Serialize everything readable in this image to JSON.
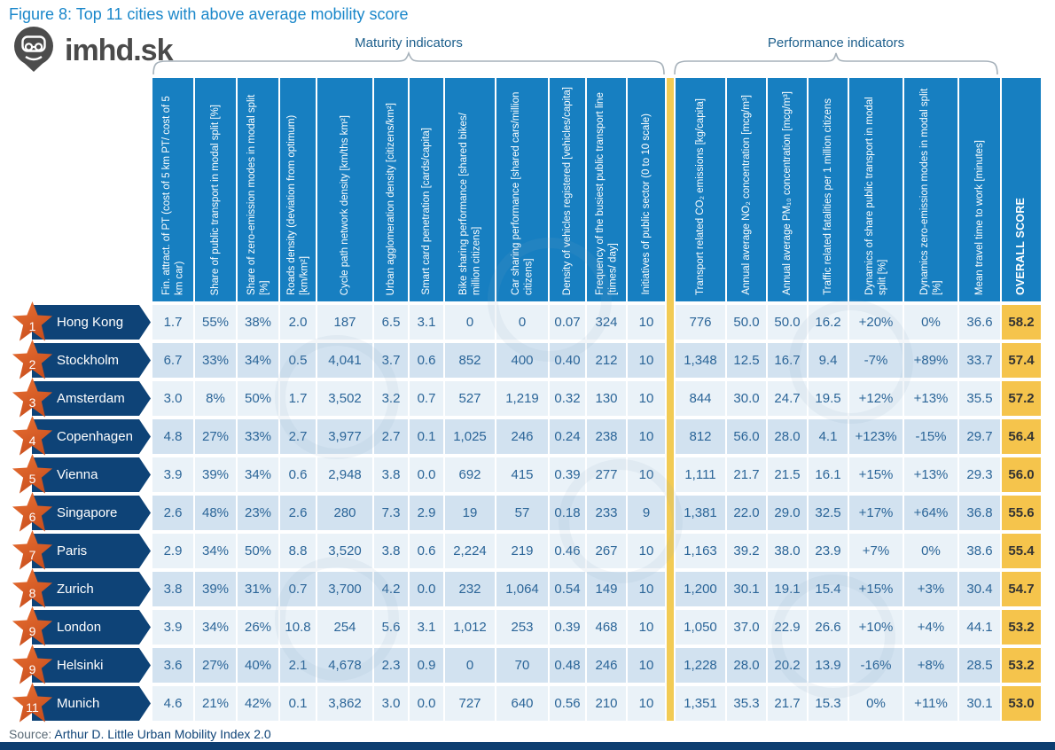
{
  "figure": {
    "title": "Figure 8: Top 11 cities with above average mobility score"
  },
  "logo": {
    "text": "imhd.sk",
    "icon": "transit-pin-icon"
  },
  "source": {
    "label": "Source:",
    "text": "Arthur D. Little Urban Mobility Index 2.0"
  },
  "colors": {
    "title_blue": "#1a87ca",
    "header_blue": "#177fc1",
    "banner_navy": "#0e4377",
    "star_orange": "#d85a26",
    "row_light": "#eaf2f8",
    "row_dark": "#d2e2f0",
    "score_gold": "#f5c44c",
    "divider_gold": "#f2cb54",
    "cell_text_blue": "#2b6598",
    "bottom_bar_navy": "#0d3e70"
  },
  "chart_data": {
    "type": "table",
    "title": "Figure 8: Top 11 cities with above average mobility score",
    "column_groups": [
      {
        "label": "Maturity indicators",
        "column_span": [
          0,
          11
        ]
      },
      {
        "label": "Performance indicators",
        "column_span": [
          12,
          18
        ]
      }
    ],
    "columns": [
      "Fin. attract. of PT (cost of 5 km PT/ cost of 5 km car)",
      "Share of public transport in modal split [%]",
      "Share of zero-emission modes in modal split [%]",
      "Roads density (deviation from optimum) [km/km²]",
      "Cycle path network density [km/ths km²]",
      "Urban agglomeration density [citizens/km²]",
      "Smart card penetration [cards/capita]",
      "Bike sharing performance [shared bikes/ million citizens]",
      "Car sharing performance [shared cars/million citizens]",
      "Density of vehicles registered [vehicles/capita]",
      "Frequency of the busiest public transport line [times/ day]",
      "Initiatives of public sector (0 to 10 scale)",
      "Transport related CO₂ emissions [kg/capita]",
      "Annual average NO₂ concentration [mcg/m³]",
      "Annual average PM₁₀ concentration [mcg/m³]",
      "Traffic related fatalities per 1 million citizens",
      "Dynamics of share public transport in modal split [%]",
      "Dynamics zero-emission modes in modal split [%]",
      "Mean travel time to work [minutes]"
    ],
    "score_column": "OVERALL SCORE",
    "rows": [
      {
        "rank": "1",
        "city": "Hong Kong",
        "values": [
          "1.7",
          "55%",
          "38%",
          "2.0",
          "187",
          "6.5",
          "3.1",
          "0",
          "0",
          "0.07",
          "324",
          "10",
          "776",
          "50.0",
          "50.0",
          "16.2",
          "+20%",
          "0%",
          "36.6"
        ],
        "overall_score": "58.2"
      },
      {
        "rank": "2",
        "city": "Stockholm",
        "values": [
          "6.7",
          "33%",
          "34%",
          "0.5",
          "4,041",
          "3.7",
          "0.6",
          "852",
          "400",
          "0.40",
          "212",
          "10",
          "1,348",
          "12.5",
          "16.7",
          "9.4",
          "-7%",
          "+89%",
          "33.7"
        ],
        "overall_score": "57.4"
      },
      {
        "rank": "3",
        "city": "Amsterdam",
        "values": [
          "3.0",
          "8%",
          "50%",
          "1.7",
          "3,502",
          "3.2",
          "0.7",
          "527",
          "1,219",
          "0.32",
          "130",
          "10",
          "844",
          "30.0",
          "24.7",
          "19.5",
          "+12%",
          "+13%",
          "35.5"
        ],
        "overall_score": "57.2"
      },
      {
        "rank": "4",
        "city": "Copenhagen",
        "values": [
          "4.8",
          "27%",
          "33%",
          "2.7",
          "3,977",
          "2.7",
          "0.1",
          "1,025",
          "246",
          "0.24",
          "238",
          "10",
          "812",
          "56.0",
          "28.0",
          "4.1",
          "+123%",
          "-15%",
          "29.7"
        ],
        "overall_score": "56.4"
      },
      {
        "rank": "5",
        "city": "Vienna",
        "values": [
          "3.9",
          "39%",
          "34%",
          "0.6",
          "2,948",
          "3.8",
          "0.0",
          "692",
          "415",
          "0.39",
          "277",
          "10",
          "1,111",
          "21.7",
          "21.5",
          "16.1",
          "+15%",
          "+13%",
          "29.3"
        ],
        "overall_score": "56.0"
      },
      {
        "rank": "6",
        "city": "Singapore",
        "values": [
          "2.6",
          "48%",
          "23%",
          "2.6",
          "280",
          "7.3",
          "2.9",
          "19",
          "57",
          "0.18",
          "233",
          "9",
          "1,381",
          "22.0",
          "29.0",
          "32.5",
          "+17%",
          "+64%",
          "36.8"
        ],
        "overall_score": "55.6"
      },
      {
        "rank": "7",
        "city": "Paris",
        "values": [
          "2.9",
          "34%",
          "50%",
          "8.8",
          "3,520",
          "3.8",
          "0.6",
          "2,224",
          "219",
          "0.46",
          "267",
          "10",
          "1,163",
          "39.2",
          "38.0",
          "23.9",
          "+7%",
          "0%",
          "38.6"
        ],
        "overall_score": "55.4"
      },
      {
        "rank": "8",
        "city": "Zurich",
        "values": [
          "3.8",
          "39%",
          "31%",
          "0.7",
          "3,700",
          "4.2",
          "0.0",
          "232",
          "1,064",
          "0.54",
          "149",
          "10",
          "1,200",
          "30.1",
          "19.1",
          "15.4",
          "+15%",
          "+3%",
          "30.4"
        ],
        "overall_score": "54.7"
      },
      {
        "rank": "9",
        "city": "London",
        "values": [
          "3.9",
          "34%",
          "26%",
          "10.8",
          "254",
          "5.6",
          "3.1",
          "1,012",
          "253",
          "0.39",
          "468",
          "10",
          "1,050",
          "37.0",
          "22.9",
          "26.6",
          "+10%",
          "+4%",
          "44.1"
        ],
        "overall_score": "53.2"
      },
      {
        "rank": "9",
        "city": "Helsinki",
        "values": [
          "3.6",
          "27%",
          "40%",
          "2.1",
          "4,678",
          "2.3",
          "0.9",
          "0",
          "70",
          "0.48",
          "246",
          "10",
          "1,228",
          "28.0",
          "20.2",
          "13.9",
          "-16%",
          "+8%",
          "28.5"
        ],
        "overall_score": "53.2"
      },
      {
        "rank": "11",
        "city": "Munich",
        "values": [
          "4.6",
          "21%",
          "42%",
          "0.1",
          "3,862",
          "3.0",
          "0.0",
          "727",
          "640",
          "0.56",
          "210",
          "10",
          "1,351",
          "35.3",
          "21.7",
          "15.3",
          "0%",
          "+11%",
          "30.1"
        ],
        "overall_score": "53.0"
      }
    ]
  }
}
